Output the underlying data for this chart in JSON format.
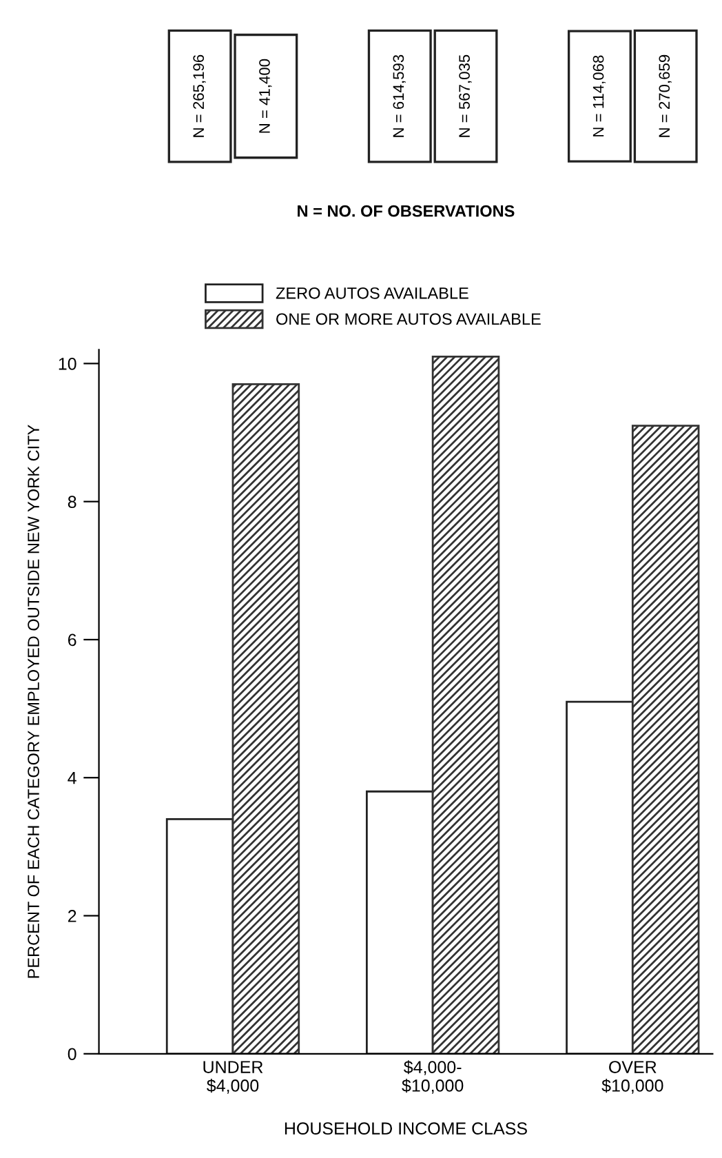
{
  "chart_data": {
    "type": "bar",
    "categories": [
      "UNDER\n$4,000",
      "$4,000-\n$10,000",
      "OVER\n$10,000"
    ],
    "series": [
      {
        "name": "ZERO AUTOS AVAILABLE",
        "color": "#ffffff",
        "values": [
          3.4,
          3.8,
          5.1
        ]
      },
      {
        "name": "ONE OR MORE AUTOS AVAILABLE",
        "color": "#333333",
        "values": [
          9.7,
          10.1,
          9.1
        ]
      }
    ],
    "xlabel": "HOUSEHOLD INCOME CLASS",
    "ylabel": "PERCENT OF EACH CATEGORY EMPLOYED OUTSIDE NEW YORK CITY",
    "ylim": [
      0,
      10.2
    ],
    "yticks": [
      0,
      2,
      4,
      6,
      8,
      10
    ],
    "annotations": [
      "N = 265,196",
      "N = 41,400",
      "N = 614,593",
      "N = 567,035",
      "N = 114,068",
      "N = 270,659",
      "N = NO. OF OBSERVATIONS"
    ],
    "legend": "top left",
    "grid": false
  }
}
